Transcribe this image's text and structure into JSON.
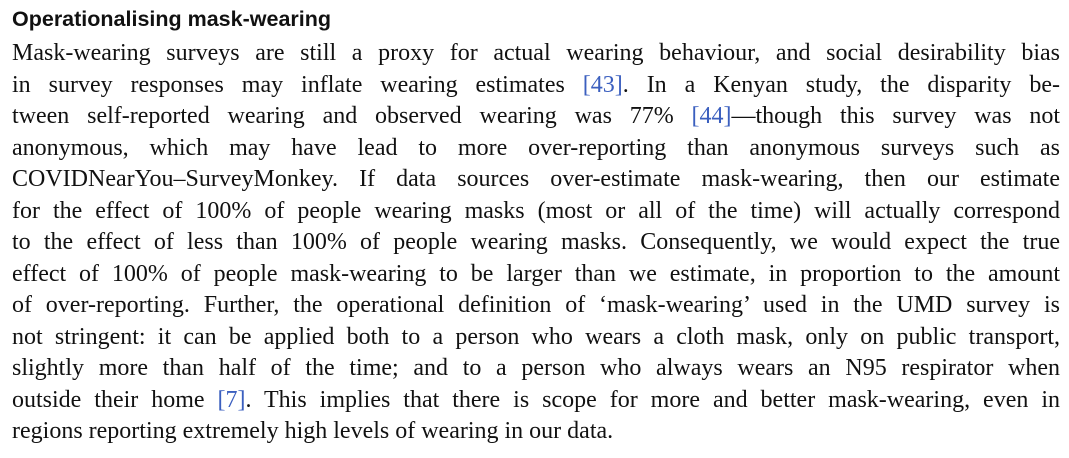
{
  "section": {
    "heading": "Operationalising mask-wearing"
  },
  "paragraph": {
    "line1": "Mask-wearing surveys are still a proxy for actual wearing behaviour, and social desirability bias",
    "line2_a": "in survey responses may inflate wearing estimates ",
    "line2_cite": "[43]",
    "line2_b": ". In a Kenyan study, the disparity be-",
    "line3_a": "tween self-reported wearing and observed wearing was 77% ",
    "line3_cite": "[44]",
    "line3_b": "—though this survey was not",
    "line4": "anonymous, which may have lead to more over-reporting than anonymous surveys such as",
    "line5": "COVIDNearYou–SurveyMonkey. If data sources over-estimate mask-wearing, then our estimate",
    "line6": "for the effect of 100% of people wearing masks (most or all of the time) will actually correspond",
    "line7": "to the effect of less than 100% of people wearing masks. Consequently, we would expect the true",
    "line8": "effect of 100% of people mask-wearing to be larger than we estimate, in proportion to the amount",
    "line9": "of over-reporting. Further, the operational definition of ‘mask-wearing’ used in the UMD survey is",
    "line10": "not stringent: it can be applied both to a person who wears a cloth mask, only on public transport,",
    "line11": "slightly more than half of the time; and to a person who always wears an N95 respirator when",
    "line12_a": "outside their home ",
    "line12_cite": "[7]",
    "line12_b": ". This implies that there is scope for more and better mask-wearing, even in",
    "line13": "regions reporting extremely high levels of wearing in our data."
  },
  "colors": {
    "text": "#111111",
    "citation_link": "#3b5fbf",
    "background": "#ffffff"
  }
}
